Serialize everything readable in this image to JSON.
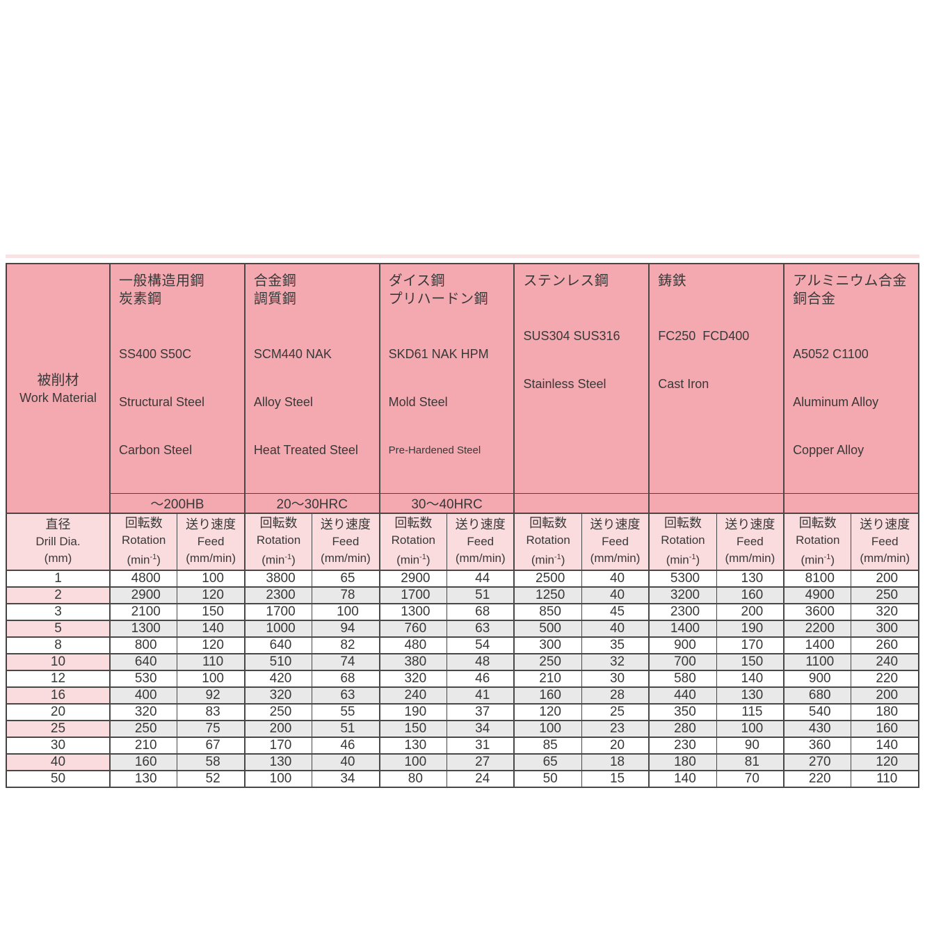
{
  "table": {
    "work_material": {
      "jp": "被削材",
      "en": "Work Material"
    },
    "drill_dia": {
      "jp": "直径",
      "en": "Drill Dia.",
      "unit": "(mm)"
    },
    "col_headers": {
      "rotation": {
        "jp": "回転数",
        "en": "Rotation",
        "unit_pre": "(min",
        "unit_sup": "-1",
        "unit_post": ")"
      },
      "feed": {
        "jp": "送り速度",
        "en": "Feed",
        "unit": "(mm/min)"
      }
    },
    "materials": [
      {
        "jp1": "一般構造用鋼",
        "jp2": "炭素鋼",
        "codes": "SS400 S50C",
        "en1": "Structural Steel",
        "en2": "Carbon Steel",
        "hardness": "～200HB"
      },
      {
        "jp1": "合金鋼",
        "jp2": "調質鋼",
        "codes": "SCM440 NAK",
        "en1": "Alloy Steel",
        "en2": "Heat Treated Steel",
        "hardness": "20～30HRC"
      },
      {
        "jp1": "ダイス鋼",
        "jp2": "プリハードン鋼",
        "codes": "SKD61 NAK HPM",
        "en1": "Mold Steel",
        "en2": "Pre-Hardened Steel",
        "hardness": "30～40HRC"
      },
      {
        "jp1": "ステンレス鋼",
        "jp2": "",
        "codes": "SUS304 SUS316",
        "en1": "Stainless Steel",
        "en2": "",
        "hardness": ""
      },
      {
        "jp1": "鋳鉄",
        "jp2": "",
        "codes": "FC250  FCD400",
        "en1": "Cast Iron",
        "en2": "",
        "hardness": ""
      },
      {
        "jp1": "アルミニウム合金",
        "jp2": "銅合金",
        "codes": "A5052 C1100",
        "en1": "Aluminum Alloy",
        "en2": "Copper Alloy",
        "hardness": ""
      }
    ],
    "rows": [
      {
        "dia": "1",
        "shaded": false,
        "values": [
          "4800",
          "100",
          "3800",
          "65",
          "2900",
          "44",
          "2500",
          "40",
          "5300",
          "130",
          "8100",
          "200"
        ]
      },
      {
        "dia": "2",
        "shaded": true,
        "values": [
          "2900",
          "120",
          "2300",
          "78",
          "1700",
          "51",
          "1250",
          "40",
          "3200",
          "160",
          "4900",
          "250"
        ]
      },
      {
        "dia": "3",
        "shaded": false,
        "values": [
          "2100",
          "150",
          "1700",
          "100",
          "1300",
          "68",
          "850",
          "45",
          "2300",
          "200",
          "3600",
          "320"
        ]
      },
      {
        "dia": "5",
        "shaded": true,
        "values": [
          "1300",
          "140",
          "1000",
          "94",
          "760",
          "63",
          "500",
          "40",
          "1400",
          "190",
          "2200",
          "300"
        ]
      },
      {
        "dia": "8",
        "shaded": false,
        "values": [
          "800",
          "120",
          "640",
          "82",
          "480",
          "54",
          "300",
          "35",
          "900",
          "170",
          "1400",
          "260"
        ]
      },
      {
        "dia": "10",
        "shaded": true,
        "values": [
          "640",
          "110",
          "510",
          "74",
          "380",
          "48",
          "250",
          "32",
          "700",
          "150",
          "1100",
          "240"
        ]
      },
      {
        "dia": "12",
        "shaded": false,
        "values": [
          "530",
          "100",
          "420",
          "68",
          "320",
          "46",
          "210",
          "30",
          "580",
          "140",
          "900",
          "220"
        ]
      },
      {
        "dia": "16",
        "shaded": true,
        "values": [
          "400",
          "92",
          "320",
          "63",
          "240",
          "41",
          "160",
          "28",
          "440",
          "130",
          "680",
          "200"
        ]
      },
      {
        "dia": "20",
        "shaded": false,
        "values": [
          "320",
          "83",
          "250",
          "55",
          "190",
          "37",
          "120",
          "25",
          "350",
          "115",
          "540",
          "180"
        ]
      },
      {
        "dia": "25",
        "shaded": true,
        "values": [
          "250",
          "75",
          "200",
          "51",
          "150",
          "34",
          "100",
          "23",
          "280",
          "100",
          "430",
          "160"
        ]
      },
      {
        "dia": "30",
        "shaded": false,
        "values": [
          "210",
          "67",
          "170",
          "46",
          "130",
          "31",
          "85",
          "20",
          "230",
          "90",
          "360",
          "140"
        ]
      },
      {
        "dia": "40",
        "shaded": true,
        "values": [
          "160",
          "58",
          "130",
          "40",
          "100",
          "27",
          "65",
          "18",
          "180",
          "81",
          "270",
          "120"
        ]
      },
      {
        "dia": "50",
        "shaded": false,
        "values": [
          "130",
          "52",
          "100",
          "34",
          "80",
          "24",
          "50",
          "15",
          "140",
          "70",
          "220",
          "110"
        ]
      }
    ],
    "colors": {
      "header_pink": "#f4a9b0",
      "subheader_pink": "#fadcde",
      "shaded_gray": "#e9e9e9",
      "border": "#474747"
    }
  }
}
